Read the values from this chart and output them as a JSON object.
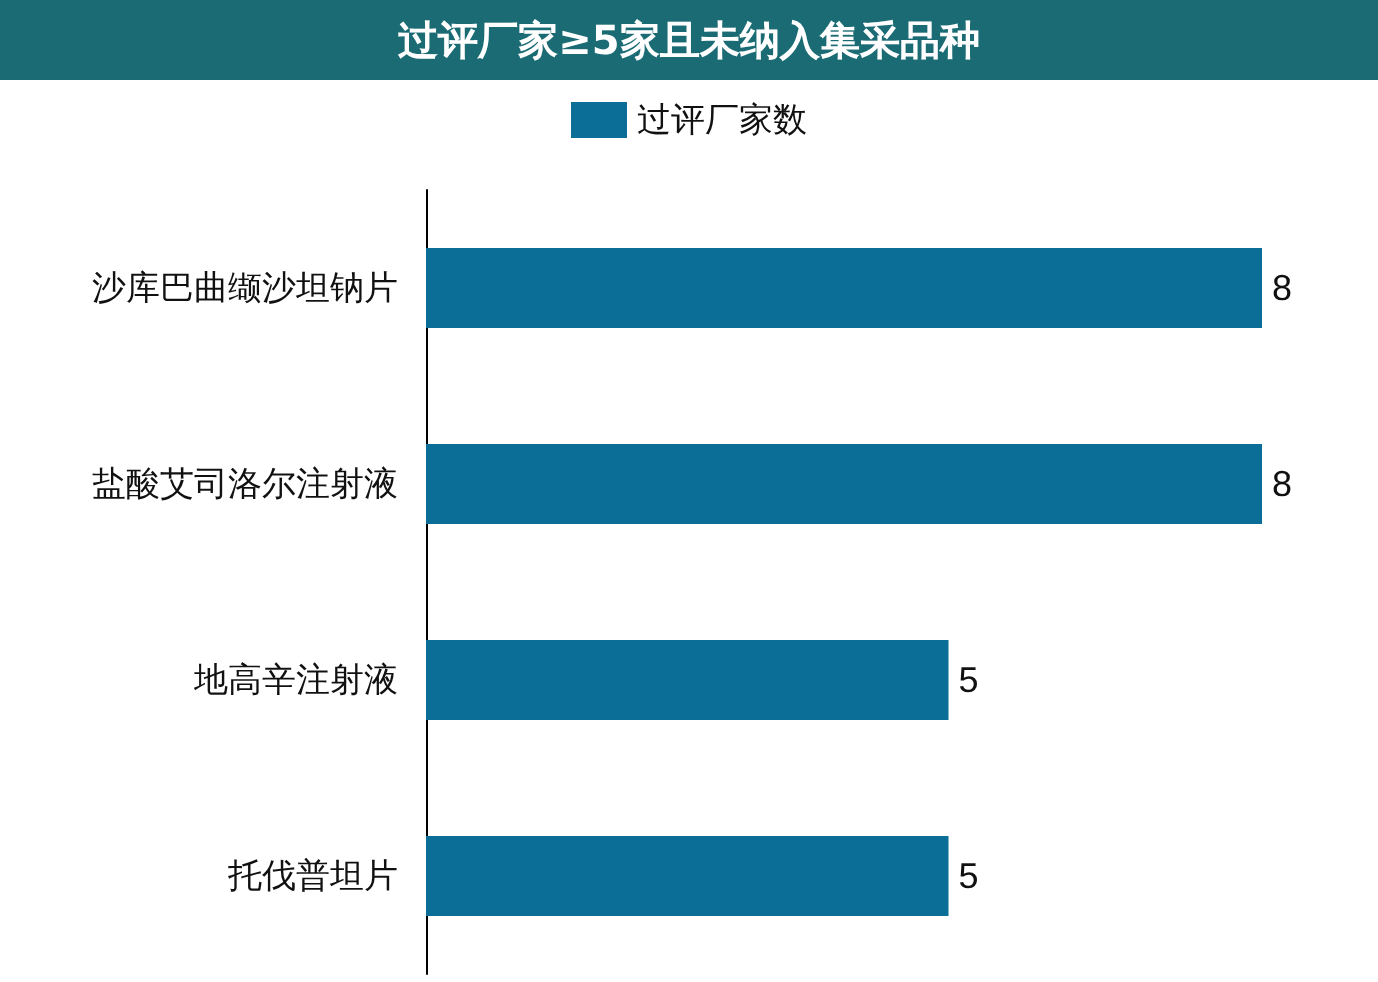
{
  "chart_data": {
    "type": "bar",
    "orientation": "horizontal",
    "title": "过评厂家≥5家且未纳入集采品种",
    "categories": [
      "沙库巴曲缬沙坦钠片",
      "盐酸艾司洛尔注射液",
      "地高辛注射液",
      "托伐普坦片"
    ],
    "series": [
      {
        "name": "过评厂家数",
        "color": "#0b6e96",
        "values": [
          8,
          8,
          5,
          5
        ]
      }
    ],
    "data_labels": true,
    "legend": "top",
    "grid": false
  }
}
